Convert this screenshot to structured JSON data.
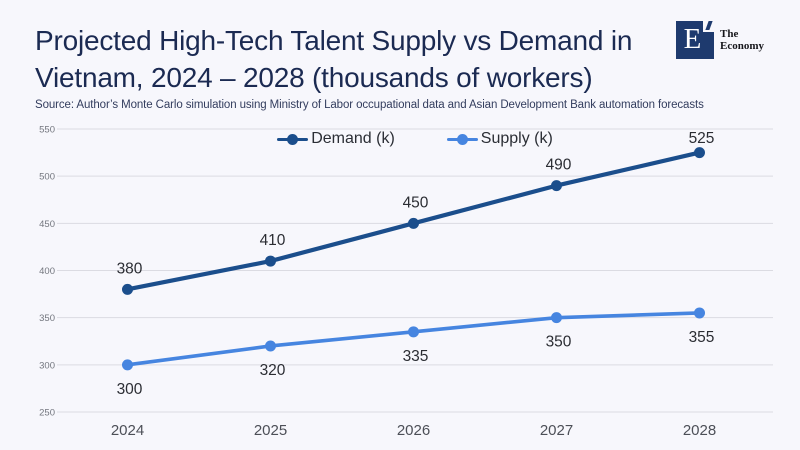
{
  "page": {
    "background": "#f7f7fc"
  },
  "header": {
    "title_line1": "Projected High-Tech Talent Supply vs Demand in",
    "title_line2": "Vietnam, 2024 – 2028 (thousands of workers)",
    "source": "Source: Author’s Monte Carlo simulation using Ministry of Labor occupational data and Asian Development Bank automation forecasts"
  },
  "logo": {
    "letter": "E",
    "name_line1": "The",
    "name_line2": "Economy",
    "color": "#1e3a6e"
  },
  "chart_data": {
    "type": "line",
    "title": "Projected High-Tech Talent Supply vs Demand in Vietnam, 2024 – 2028 (thousands of workers)",
    "categories": [
      "2024",
      "2025",
      "2026",
      "2027",
      "2028"
    ],
    "series": [
      {
        "name": "Demand (k)",
        "values": [
          380,
          410,
          450,
          490,
          525
        ],
        "color": "#1b4e8c",
        "label_position": "above"
      },
      {
        "name": "Supply (k)",
        "values": [
          300,
          320,
          335,
          350,
          355
        ],
        "color": "#4685e0",
        "label_position": "below"
      }
    ],
    "xlabel": "",
    "ylabel": "",
    "ylim": [
      250,
      550
    ],
    "ytick_step": 50,
    "grid": true,
    "legend_position": "top-center",
    "data_labels": true
  }
}
